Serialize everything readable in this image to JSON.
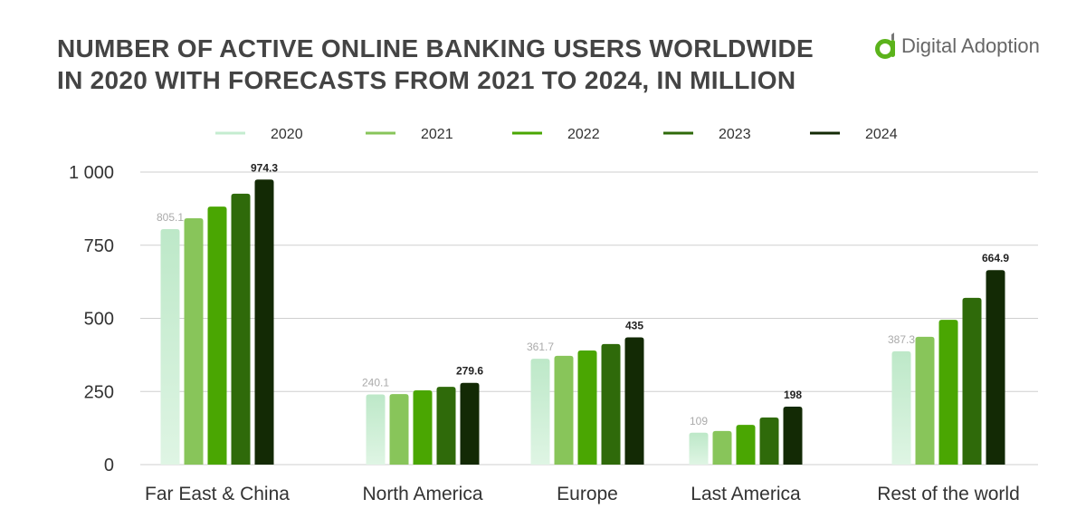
{
  "brand": {
    "name": "Digital Adoption",
    "accent": "#5bb31b"
  },
  "chart_data": {
    "type": "bar",
    "title": "NUMBER OF ACTIVE ONLINE BANKING USERS WORLDWIDE IN 2020 WITH FORECASTS FROM 2021 TO 2024, IN MILLION",
    "title_lines": [
      "NUMBER OF ACTIVE ONLINE BANKING USERS WORLDWIDE",
      "IN 2020 WITH FORECASTS FROM 2021 TO 2024, IN MILLION"
    ],
    "xlabel": "",
    "ylabel": "",
    "ylim": [
      0,
      1000
    ],
    "yticks": [
      0,
      250,
      500,
      750,
      1000
    ],
    "ytick_labels": [
      "0",
      "250",
      "500",
      "750",
      "1 000"
    ],
    "grid": true,
    "legend_position": "top",
    "categories": [
      "Far East & China",
      "North America",
      "Europe",
      "Last America",
      "Rest of the world"
    ],
    "series": [
      {
        "name": "2020",
        "color": "#bfe8c8",
        "values": [
          805.1,
          240.1,
          361.7,
          109,
          387.3
        ]
      },
      {
        "name": "2021",
        "color": "#88c55a",
        "values": [
          842,
          241,
          372,
          115,
          437
        ]
      },
      {
        "name": "2022",
        "color": "#4aa602",
        "values": [
          882,
          254,
          390,
          136,
          495
        ]
      },
      {
        "name": "2023",
        "color": "#2f6a0a",
        "values": [
          926,
          266,
          412,
          161,
          570
        ]
      },
      {
        "name": "2024",
        "color": "#132a05",
        "values": [
          974.3,
          279.6,
          435,
          198,
          664.9
        ]
      }
    ],
    "data_labels": [
      {
        "series": "2020",
        "labels": [
          "805.1",
          "240.1",
          "361.7",
          "109",
          "387.3"
        ],
        "color": "#aaaaaa"
      },
      {
        "series": "2024",
        "labels": [
          "974.3",
          "279.6",
          "435",
          "198",
          "664.9"
        ],
        "color": "#222222"
      }
    ]
  }
}
